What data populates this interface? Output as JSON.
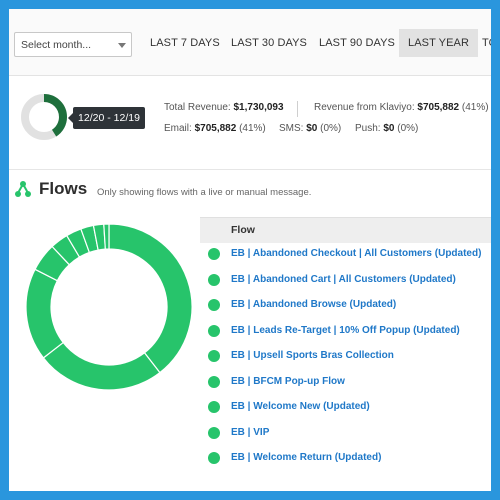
{
  "toolbar": {
    "month_select": "Select month...",
    "ranges": [
      "LAST 7 DAYS",
      "LAST 30 DAYS",
      "LAST 90 DAYS",
      "LAST YEAR",
      "TO"
    ],
    "active_range": "LAST YEAR"
  },
  "summary": {
    "date_range": "12/20 - 12/19",
    "total_revenue_label": "Total Revenue:",
    "total_revenue_value": "$1,730,093",
    "klaviyo_label": "Revenue from Klaviyo:",
    "klaviyo_value": "$705,882",
    "klaviyo_pct": "(41%)",
    "email_label": "Email:",
    "email_value": "$705,882",
    "email_pct": "(41%)",
    "sms_label": "SMS:",
    "sms_value": "$0",
    "sms_pct": "(0%)",
    "push_label": "Push:",
    "push_value": "$0",
    "push_pct": "(0%)",
    "revenue_share": 0.41
  },
  "flows": {
    "title": "Flows",
    "subtitle": "Only showing flows with a live or manual message.",
    "column_header": "Flow",
    "items": [
      "EB | Abandoned Checkout | All Customers (Updated)",
      "EB | Abandoned Cart | All Customers (Updated)",
      "EB | Abandoned Browse (Updated)",
      "EB | Leads Re-Target | 10% Off Popup (Updated)",
      "EB | Upsell Sports Bras Collection",
      "EB | BFCM Pop-up Flow",
      "EB | Welcome New (Updated)",
      "EB | VIP",
      "EB | Welcome Return (Updated)"
    ],
    "slice_shares": [
      0.395,
      0.25,
      0.18,
      0.055,
      0.035,
      0.03,
      0.025,
      0.02,
      0.01
    ]
  },
  "colors": {
    "accent_green": "#27c46b",
    "dark_green": "#1e6f3c",
    "link_blue": "#1f78c8",
    "frame_blue": "#2a96dd"
  }
}
